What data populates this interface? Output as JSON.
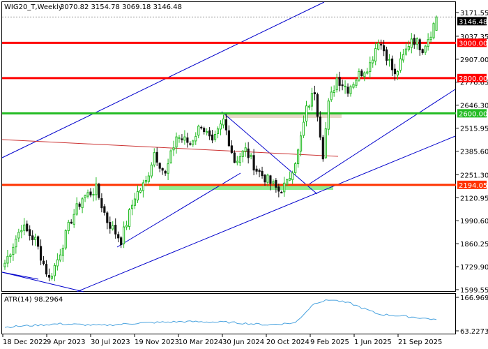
{
  "header": {
    "symbol": "WIG20_T,Weekly",
    "ohlc": "3070.82 3154.78 3069.18 3146.48"
  },
  "price_axis": {
    "ticks": [
      "3171.55",
      "3037.35",
      "2907.00",
      "2776.65",
      "2646.30",
      "2515.95",
      "2385.60",
      "2251.30",
      "2120.95",
      "1990.60",
      "1860.25",
      "1729.90",
      "1599.55"
    ]
  },
  "atr_axis": {
    "ticks": [
      "166.9699",
      "63.2273"
    ]
  },
  "time_axis": {
    "labels": [
      "18 Dec 2022",
      "9 Apr 2023",
      "30 Jul 2023",
      "19 Nov 2023",
      "10 Mar 2024",
      "30 Jun 2024",
      "20 Oct 2024",
      "9 Feb 2025",
      "1 Jun 2025",
      "21 Sep 2025"
    ]
  },
  "atr_panel": {
    "label": "ATR(14) 98.2964"
  },
  "levels": [
    {
      "value": 3000.0,
      "label": "3000.00",
      "color": "#ff0000"
    },
    {
      "value": 2800.0,
      "label": "2800.00",
      "color": "#ff0000"
    },
    {
      "value": 2600.0,
      "label": "2600.00",
      "color": "#22bb22"
    },
    {
      "value": 2194.05,
      "label": "2194.05",
      "color": "#ff3300"
    }
  ],
  "current_price": {
    "value": 3146.48,
    "label": "3146.48"
  },
  "colors": {
    "bull": "#22bb22",
    "bear": "#111111",
    "channel": "#0000cc",
    "ma_line": "#cc3333",
    "atr": "#4aa3df",
    "support_zone": "#90ee90",
    "resistance_zone": "#e8d8c8"
  },
  "chart_data": {
    "type": "candlestick",
    "title": "WIG20_T,Weekly",
    "timeframe": "weekly",
    "ylim": [
      1599.55,
      3171.55
    ],
    "anchors": [
      {
        "week": 0,
        "price": 1750
      },
      {
        "week": 6,
        "price": 1960
      },
      {
        "week": 11,
        "price": 1880
      },
      {
        "week": 16,
        "price": 1660
      },
      {
        "week": 19,
        "price": 1770
      },
      {
        "week": 24,
        "price": 2000
      },
      {
        "week": 28,
        "price": 2120
      },
      {
        "week": 33,
        "price": 2170
      },
      {
        "week": 37,
        "price": 1990
      },
      {
        "week": 42,
        "price": 1880
      },
      {
        "week": 47,
        "price": 2130
      },
      {
        "week": 51,
        "price": 2210
      },
      {
        "week": 54,
        "price": 2380
      },
      {
        "week": 58,
        "price": 2250
      },
      {
        "week": 62,
        "price": 2470
      },
      {
        "week": 67,
        "price": 2430
      },
      {
        "week": 71,
        "price": 2540
      },
      {
        "week": 75,
        "price": 2420
      },
      {
        "week": 79,
        "price": 2560
      },
      {
        "week": 83,
        "price": 2330
      },
      {
        "week": 87,
        "price": 2390
      },
      {
        "week": 91,
        "price": 2280
      },
      {
        "week": 95,
        "price": 2220
      },
      {
        "week": 99,
        "price": 2160
      },
      {
        "week": 102,
        "price": 2200
      },
      {
        "week": 106,
        "price": 2380
      },
      {
        "week": 109,
        "price": 2620
      },
      {
        "week": 112,
        "price": 2730
      },
      {
        "week": 115,
        "price": 2370
      },
      {
        "week": 117,
        "price": 2650
      },
      {
        "week": 120,
        "price": 2800
      },
      {
        "week": 124,
        "price": 2740
      },
      {
        "week": 128,
        "price": 2820
      },
      {
        "week": 132,
        "price": 2880
      },
      {
        "week": 135,
        "price": 3020
      },
      {
        "week": 138,
        "price": 2930
      },
      {
        "week": 141,
        "price": 2810
      },
      {
        "week": 144,
        "price": 2920
      },
      {
        "week": 147,
        "price": 3030
      },
      {
        "week": 151,
        "price": 2970
      },
      {
        "week": 154,
        "price": 3060
      },
      {
        "week": 156,
        "price": 3146.48
      }
    ],
    "atr": {
      "ylim": [
        63.2273,
        166.9699
      ],
      "anchors": [
        {
          "week": 0,
          "value": 75
        },
        {
          "week": 20,
          "value": 85
        },
        {
          "week": 35,
          "value": 80
        },
        {
          "week": 50,
          "value": 88
        },
        {
          "week": 65,
          "value": 92
        },
        {
          "week": 80,
          "value": 90
        },
        {
          "week": 95,
          "value": 82
        },
        {
          "week": 105,
          "value": 88
        },
        {
          "week": 112,
          "value": 150
        },
        {
          "week": 118,
          "value": 160
        },
        {
          "week": 125,
          "value": 148
        },
        {
          "week": 135,
          "value": 115
        },
        {
          "week": 145,
          "value": 108
        },
        {
          "week": 156,
          "value": 98.2964
        }
      ]
    }
  }
}
